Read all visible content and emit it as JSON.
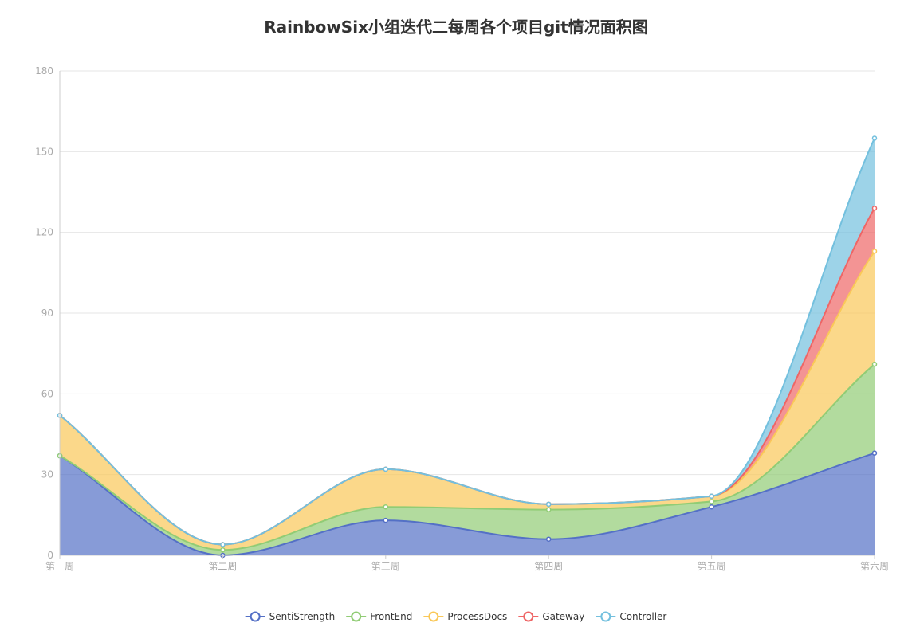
{
  "chart_data": {
    "type": "area",
    "stacked": true,
    "smooth": true,
    "title": "RainbowSix小组迭代二每周各个项目git情况面积图",
    "xlabel": "",
    "ylabel": "",
    "categories": [
      "第一周",
      "第二周",
      "第三周",
      "第四周",
      "第五周",
      "第六周"
    ],
    "ylim": [
      0,
      180
    ],
    "yticks": [
      0,
      30,
      60,
      90,
      120,
      150,
      180
    ],
    "grid": true,
    "legend_position": "bottom-center",
    "series": [
      {
        "name": "SentiStrength",
        "color": "#5470c6",
        "values": [
          37,
          0,
          13,
          6,
          18,
          38
        ]
      },
      {
        "name": "FrontEnd",
        "color": "#91cc75",
        "values": [
          0,
          2,
          5,
          11,
          2,
          33
        ]
      },
      {
        "name": "ProcessDocs",
        "color": "#fac858",
        "values": [
          15,
          2,
          14,
          2,
          2,
          42
        ]
      },
      {
        "name": "Gateway",
        "color": "#ee6666",
        "values": [
          0,
          0,
          0,
          0,
          0,
          16
        ]
      },
      {
        "name": "Controller",
        "color": "#73c0de",
        "values": [
          0,
          0,
          0,
          0,
          0,
          26
        ]
      }
    ]
  }
}
